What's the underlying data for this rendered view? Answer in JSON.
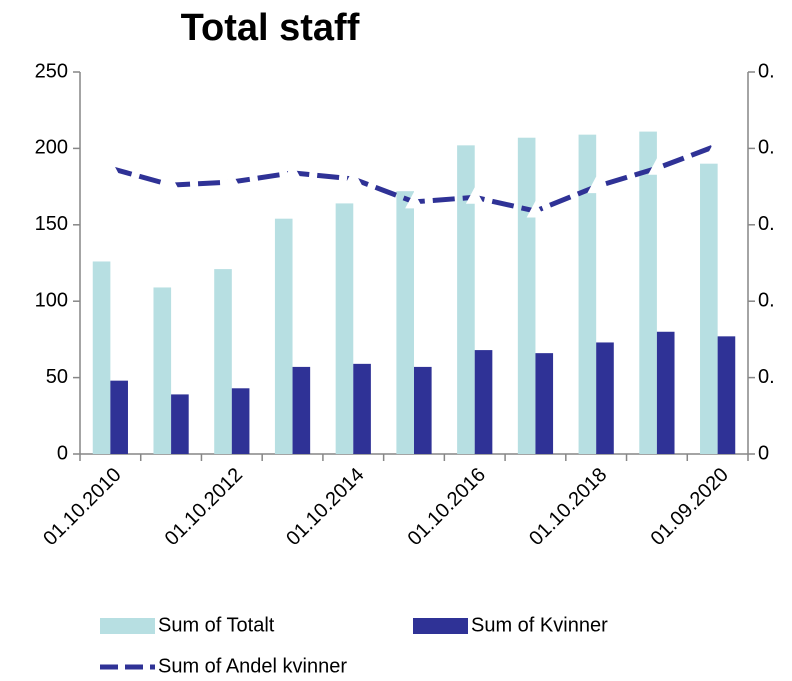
{
  "chart_data": {
    "type": "bar",
    "title": "Total staff",
    "categories": [
      "01.10.2010",
      null,
      "01.10.2012",
      null,
      "01.10.2014",
      null,
      "01.10.2016",
      null,
      "01.10.2018",
      null,
      "01.09.2020"
    ],
    "series": [
      {
        "name": "Sum of Totalt",
        "type": "bar",
        "color": "#b7dfe2",
        "values": [
          126,
          109,
          121,
          154,
          164,
          172,
          202,
          207,
          209,
          211,
          190
        ]
      },
      {
        "name": "Sum of Kvinner",
        "type": "bar",
        "color": "#2f3296",
        "values": [
          48,
          39,
          43,
          57,
          59,
          57,
          68,
          66,
          73,
          80,
          77
        ]
      },
      {
        "name": "Sum of Andel kvinner",
        "type": "line",
        "axis": "y2",
        "color": "#2f3296",
        "style": "dashed",
        "marker": "triangle",
        "values": [
          0.374,
          0.352,
          0.356,
          0.368,
          0.36,
          0.33,
          0.336,
          0.318,
          0.35,
          0.374,
          0.404
        ]
      }
    ],
    "ylim": [
      0,
      250
    ],
    "yticks": [
      0,
      50,
      100,
      150,
      200,
      250
    ],
    "y2lim": [
      0,
      0.5
    ],
    "y2ticks": [
      0,
      {
        "value": 0.1,
        "label": "0."
      },
      {
        "value": 0.2,
        "label": "0."
      },
      {
        "value": 0.3,
        "label": "0."
      },
      {
        "value": 0.4,
        "label": "0."
      },
      {
        "value": 0.5,
        "label": "0."
      }
    ],
    "legend": "bottom",
    "grid": false
  }
}
